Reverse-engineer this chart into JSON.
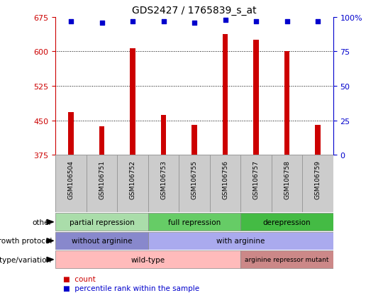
{
  "title": "GDS2427 / 1765839_s_at",
  "samples": [
    "GSM106504",
    "GSM106751",
    "GSM106752",
    "GSM106753",
    "GSM106755",
    "GSM106756",
    "GSM106757",
    "GSM106758",
    "GSM106759"
  ],
  "counts": [
    468,
    437,
    607,
    462,
    441,
    638,
    626,
    601,
    440
  ],
  "percentile_ranks": [
    97,
    96,
    97,
    97,
    96,
    98,
    97,
    97,
    97
  ],
  "ylim_left": [
    375,
    675
  ],
  "yticks_left": [
    375,
    450,
    525,
    600,
    675
  ],
  "ylim_right": [
    0,
    100
  ],
  "yticks_right": [
    0,
    25,
    50,
    75,
    100
  ],
  "bar_color": "#cc0000",
  "dot_color": "#0000cc",
  "bar_bottom": 375,
  "annotation_rows": [
    {
      "label": "other",
      "segments": [
        {
          "start": 0,
          "end": 3,
          "text": "partial repression",
          "color": "#aaddaa"
        },
        {
          "start": 3,
          "end": 6,
          "text": "full repression",
          "color": "#66cc66"
        },
        {
          "start": 6,
          "end": 9,
          "text": "derepression",
          "color": "#44bb44"
        }
      ]
    },
    {
      "label": "growth protocol",
      "segments": [
        {
          "start": 0,
          "end": 3,
          "text": "without arginine",
          "color": "#8888cc"
        },
        {
          "start": 3,
          "end": 9,
          "text": "with arginine",
          "color": "#aaaaee"
        }
      ]
    },
    {
      "label": "genotype/variation",
      "segments": [
        {
          "start": 0,
          "end": 6,
          "text": "wild-type",
          "color": "#ffbbbb"
        },
        {
          "start": 6,
          "end": 9,
          "text": "arginine repressor mutant",
          "color": "#cc8888"
        }
      ]
    }
  ],
  "legend_items": [
    {
      "color": "#cc0000",
      "label": "count"
    },
    {
      "color": "#0000cc",
      "label": "percentile rank within the sample"
    }
  ],
  "tick_label_color_left": "#cc0000",
  "tick_label_color_right": "#0000cc",
  "sample_box_color": "#cccccc",
  "sample_box_edge": "#999999"
}
